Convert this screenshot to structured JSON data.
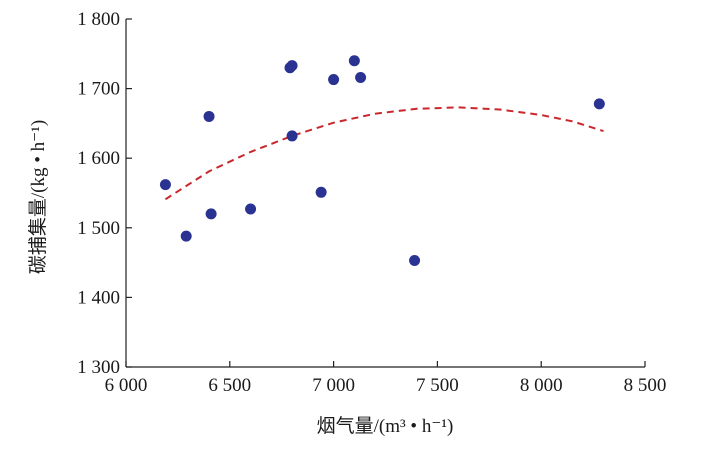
{
  "chart_data": {
    "type": "scatter",
    "title": "",
    "xlabel": "烟气量/(m³ • h⁻¹)",
    "ylabel": "碳捕集量/(kg • h⁻¹)",
    "xlim": [
      6000,
      8500
    ],
    "ylim": [
      1300,
      1800
    ],
    "x_ticks": [
      6000,
      6500,
      7000,
      7500,
      8000,
      8500
    ],
    "x_tick_labels": [
      "6 000",
      "6 500",
      "7 000",
      "7 500",
      "8 000",
      "8 500"
    ],
    "y_ticks": [
      1300,
      1400,
      1500,
      1600,
      1700,
      1800
    ],
    "y_tick_labels": [
      "1 300",
      "1 400",
      "1 500",
      "1 600",
      "1 700",
      "1 800"
    ],
    "grid": false,
    "series": [
      {
        "kind": "points",
        "color": "#2a3391",
        "points": [
          {
            "x": 6190,
            "y": 1562
          },
          {
            "x": 6290,
            "y": 1488
          },
          {
            "x": 6400,
            "y": 1660
          },
          {
            "x": 6410,
            "y": 1520
          },
          {
            "x": 6600,
            "y": 1527
          },
          {
            "x": 6790,
            "y": 1730
          },
          {
            "x": 6800,
            "y": 1733
          },
          {
            "x": 6800,
            "y": 1632
          },
          {
            "x": 6940,
            "y": 1551
          },
          {
            "x": 7000,
            "y": 1713
          },
          {
            "x": 7100,
            "y": 1740
          },
          {
            "x": 7130,
            "y": 1716
          },
          {
            "x": 7390,
            "y": 1453
          },
          {
            "x": 8280,
            "y": 1678
          }
        ]
      },
      {
        "kind": "fit",
        "style": "dashed",
        "color": "#c8282d",
        "points": [
          {
            "x": 6190,
            "y": 1541
          },
          {
            "x": 6400,
            "y": 1581
          },
          {
            "x": 6600,
            "y": 1609
          },
          {
            "x": 6800,
            "y": 1632
          },
          {
            "x": 7000,
            "y": 1651
          },
          {
            "x": 7200,
            "y": 1664
          },
          {
            "x": 7400,
            "y": 1671
          },
          {
            "x": 7600,
            "y": 1673
          },
          {
            "x": 7800,
            "y": 1670
          },
          {
            "x": 8000,
            "y": 1662
          },
          {
            "x": 8150,
            "y": 1653
          },
          {
            "x": 8300,
            "y": 1639
          }
        ]
      }
    ]
  }
}
